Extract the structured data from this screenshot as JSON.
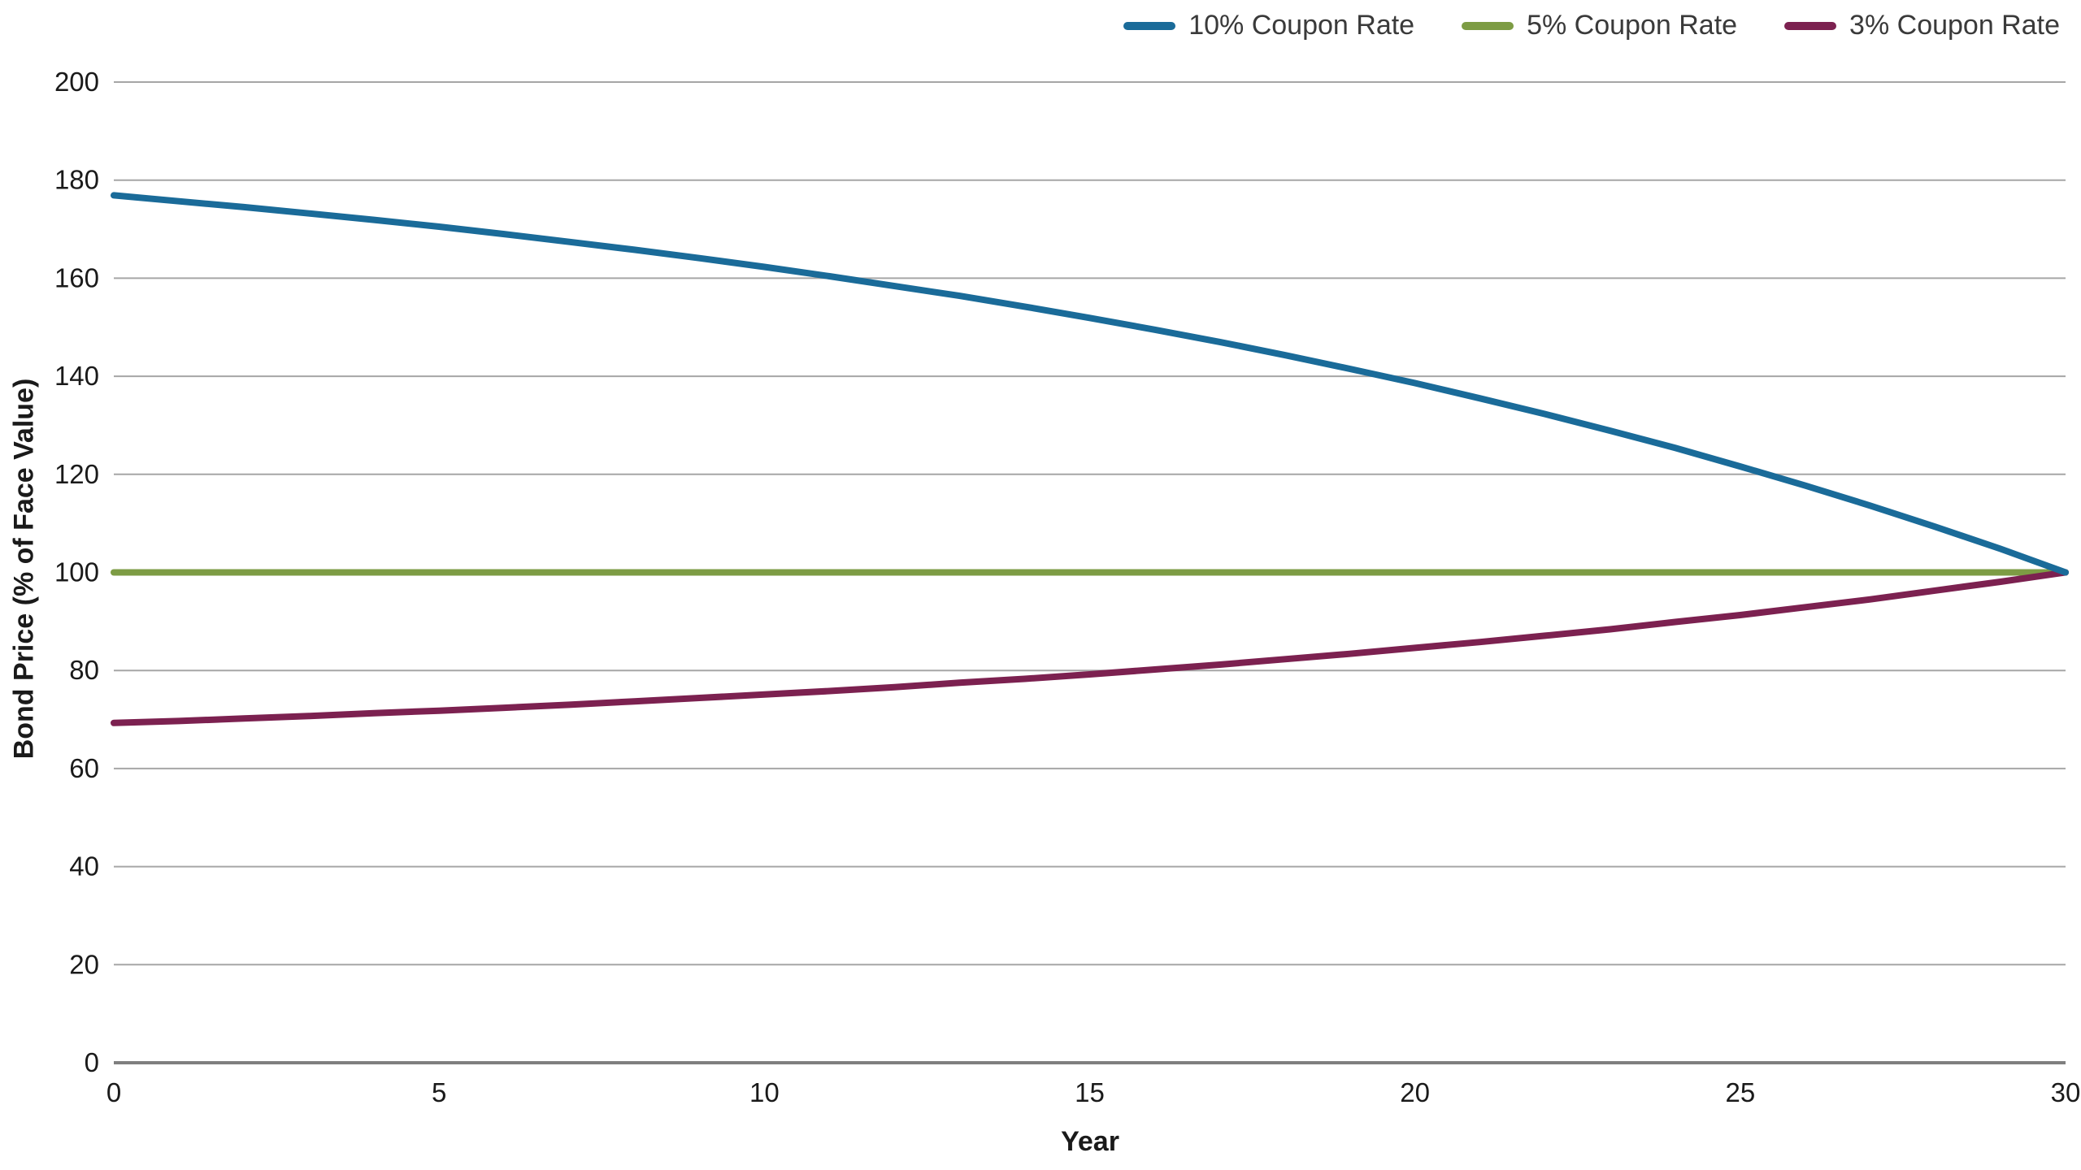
{
  "chart_data": {
    "type": "line",
    "title": "",
    "xlabel": "Year",
    "ylabel": "Bond Price (% of Face Value)",
    "xlim": [
      0,
      30
    ],
    "ylim": [
      0,
      200
    ],
    "x_ticks": [
      0,
      5,
      10,
      15,
      20,
      25,
      30
    ],
    "y_ticks": [
      0,
      20,
      40,
      60,
      80,
      100,
      120,
      140,
      160,
      180,
      200
    ],
    "grid": "horizontal-only",
    "legend_position": "top-right",
    "axis_line_color": "#7f7f7f",
    "grid_color": "#a6a6a6",
    "x": [
      0,
      1,
      2,
      3,
      4,
      5,
      6,
      7,
      8,
      9,
      10,
      11,
      12,
      13,
      14,
      15,
      16,
      17,
      18,
      19,
      20,
      21,
      22,
      23,
      24,
      25,
      26,
      27,
      28,
      29,
      30
    ],
    "series": [
      {
        "name": "10% Coupon Rate",
        "color": "#1a6b99",
        "values": [
          176.9,
          175.7,
          174.5,
          173.2,
          171.9,
          170.5,
          169.0,
          167.4,
          165.8,
          164.1,
          162.3,
          160.4,
          158.4,
          156.4,
          154.2,
          151.9,
          149.5,
          147.0,
          144.3,
          141.5,
          138.6,
          135.5,
          132.3,
          128.9,
          125.4,
          121.6,
          117.7,
          113.6,
          109.3,
          104.8,
          100.0
        ]
      },
      {
        "name": "5% Coupon Rate",
        "color": "#7d9c44",
        "values": [
          100,
          100,
          100,
          100,
          100,
          100,
          100,
          100,
          100,
          100,
          100,
          100,
          100,
          100,
          100,
          100,
          100,
          100,
          100,
          100,
          100,
          100,
          100,
          100,
          100,
          100,
          100,
          100,
          100,
          100,
          100
        ]
      },
      {
        "name": "3% Coupon Rate",
        "color": "#7c2150",
        "values": [
          69.3,
          69.7,
          70.2,
          70.7,
          71.3,
          71.8,
          72.4,
          73.0,
          73.7,
          74.4,
          75.1,
          75.8,
          76.6,
          77.5,
          78.3,
          79.2,
          80.2,
          81.2,
          82.3,
          83.4,
          84.6,
          85.8,
          87.1,
          88.4,
          89.9,
          91.3,
          92.9,
          94.5,
          96.3,
          98.1,
          100.0
        ]
      }
    ]
  }
}
